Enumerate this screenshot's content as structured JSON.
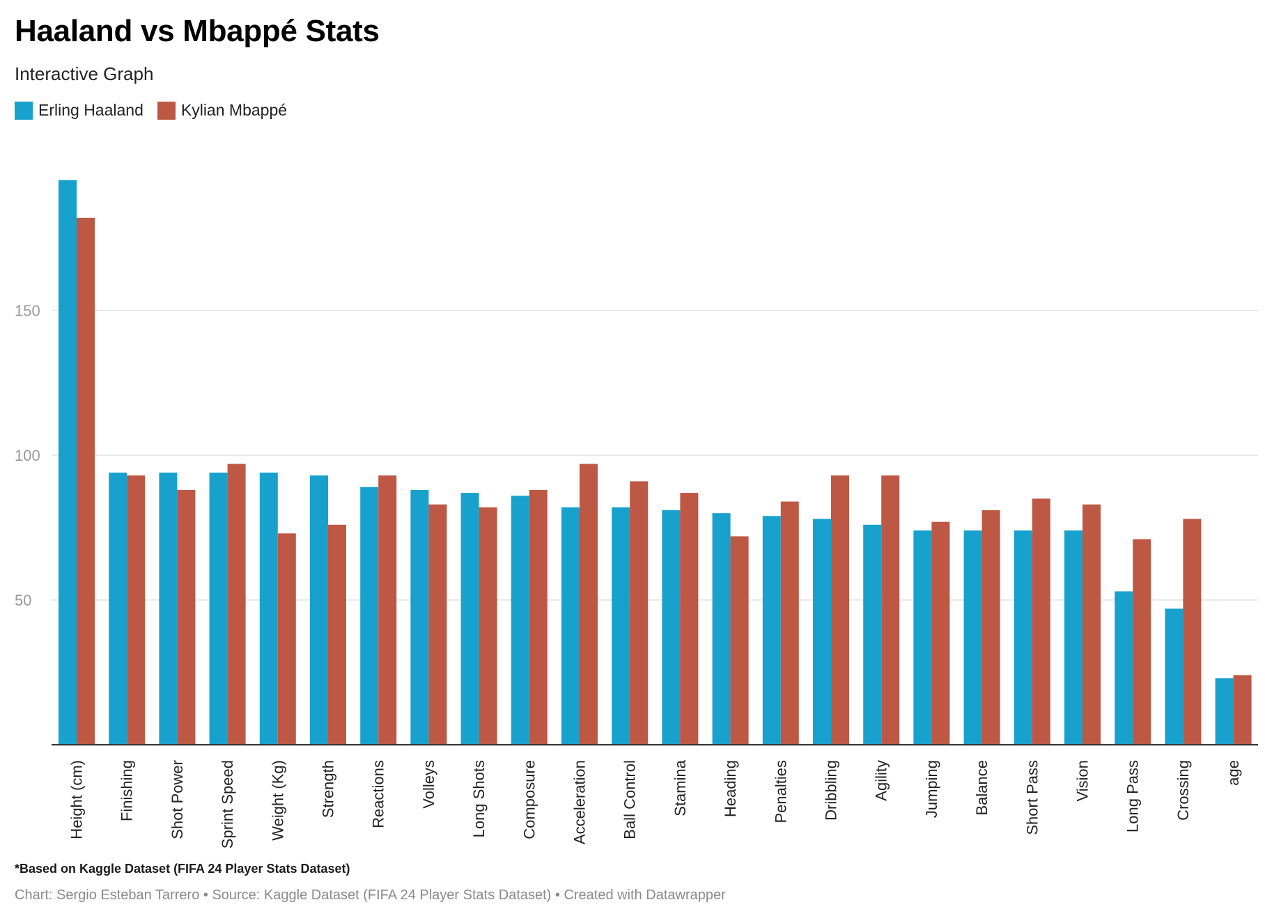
{
  "header": {
    "title": "Haaland vs Mbappé Stats",
    "subtitle": "Interactive Graph"
  },
  "colors": {
    "haaland": "#18a1cd",
    "mbappe": "#bd5844",
    "grid": "#e3e3e3",
    "axis": "#333333",
    "tick_label": "#9a9a9a",
    "category_label": "#222222"
  },
  "chart_data": {
    "type": "bar",
    "categories": [
      "Height (cm)",
      "Finishing",
      "Shot Power",
      "Sprint Speed",
      "Weight (Kg)",
      "Strength",
      "Reactions",
      "Volleys",
      "Long Shots",
      "Composure",
      "Acceleration",
      "Ball Control",
      "Stamina",
      "Heading",
      "Penalties",
      "Dribbling",
      "Agility",
      "Jumping",
      "Balance",
      "Short Pass",
      "Vision",
      "Long Pass",
      "Crossing",
      "age"
    ],
    "series": [
      {
        "name": "Erling Haaland",
        "color": "#18a1cd",
        "values": [
          195,
          94,
          94,
          94,
          94,
          93,
          89,
          88,
          87,
          86,
          82,
          82,
          81,
          80,
          79,
          78,
          76,
          74,
          74,
          74,
          74,
          53,
          47,
          23
        ]
      },
      {
        "name": "Kylian Mbappé",
        "color": "#bd5844",
        "values": [
          182,
          93,
          88,
          97,
          73,
          76,
          93,
          83,
          82,
          88,
          97,
          91,
          87,
          72,
          84,
          93,
          93,
          77,
          81,
          85,
          83,
          71,
          78,
          24
        ]
      }
    ],
    "ylim": [
      0,
      200
    ],
    "yticks": [
      50,
      100,
      150
    ],
    "grid": true,
    "legend_position": "top-left"
  },
  "footer": {
    "notes": "*Based on Kaggle Dataset (FIFA 24 Player Stats Dataset)",
    "credit": "Chart: Sergio Esteban Tarrero • Source: Kaggle Dataset (FIFA 24 Player Stats Dataset) • Created with Datawrapper"
  }
}
